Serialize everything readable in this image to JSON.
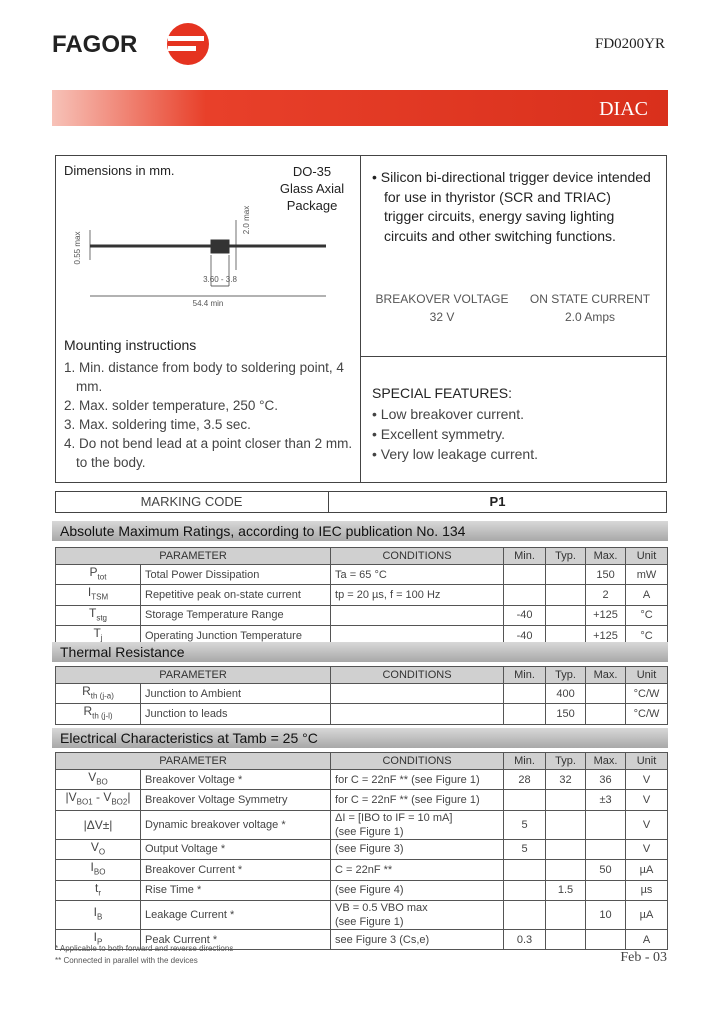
{
  "header": {
    "brand": "FAGOR",
    "part_number": "FD0200YR",
    "device_type": "DIAC"
  },
  "package": {
    "dimensions_label": "Dimensions in mm.",
    "package_lines": [
      "DO-35",
      "Glass Axial",
      "Package"
    ],
    "dimension_labels": [
      "0.55 max",
      "2.0 max",
      "3.60 - 3.8",
      "54.4 min"
    ]
  },
  "mounting": {
    "title": "Mounting instructions",
    "items": [
      "1. Min. distance from body to soldering point, 4 mm.",
      "2. Max. solder temperature, 250 °C.",
      "3. Max. soldering time, 3.5 sec.",
      "4. Do not bend lead at a point closer than 2 mm. to the body."
    ]
  },
  "description": "• Silicon bi-directional trigger device intended for use in thyristor (SCR and TRIAC) trigger circuits, energy saving lighting circuits and other switching functions.",
  "key_parameters": [
    {
      "label": "BREAKOVER VOLTAGE",
      "value": "32 V"
    },
    {
      "label": "ON STATE CURRENT",
      "value": "2.0 Amps"
    }
  ],
  "special_features": {
    "title": "SPECIAL FEATURES:",
    "items": [
      "• Low breakover current.",
      "• Excellent symmetry.",
      "• Very low leakage current."
    ]
  },
  "marking": {
    "label": "MARKING CODE",
    "code": "P1"
  },
  "tables": [
    {
      "title": "Absolute Maximum Ratings, according to IEC publication No. 134",
      "header": [
        "PARAMETER",
        "CONDITIONS",
        "Min.",
        "Typ.",
        "Max.",
        "Unit"
      ],
      "rows": [
        {
          "symbol": [
            "P",
            "tot"
          ],
          "parameter": "Total Power Dissipation",
          "conditions": [
            "Ta = 65 °C"
          ],
          "min": null,
          "typ": null,
          "max": "150",
          "unit": "mW"
        },
        {
          "symbol": [
            "I",
            "TSM"
          ],
          "parameter": "Repetitive peak on-state current",
          "conditions": [
            "tp = 20 µs, f = 100 Hz"
          ],
          "min": null,
          "typ": null,
          "max": "2",
          "unit": "A"
        },
        {
          "symbol": [
            "T",
            "stg"
          ],
          "parameter": "Storage Temperature Range",
          "conditions": null,
          "min": "-40",
          "typ": null,
          "max": "+125",
          "unit": "°C"
        },
        {
          "symbol": [
            "T",
            "j"
          ],
          "parameter": "Operating Junction Temperature",
          "conditions": null,
          "min": "-40",
          "typ": null,
          "max": "+125",
          "unit": "°C"
        }
      ]
    },
    {
      "title": "Thermal Resistance",
      "header": [
        "PARAMETER",
        "CONDITIONS",
        "Min.",
        "Typ.",
        "Max.",
        "Unit"
      ],
      "rows": [
        {
          "symbol": [
            "R",
            "th (j-a)"
          ],
          "parameter": "Junction to Ambient",
          "conditions": null,
          "min": null,
          "typ": "400",
          "max": null,
          "unit": "°C/W"
        },
        {
          "symbol": [
            "R",
            "th (j-l)"
          ],
          "parameter": "Junction to leads",
          "conditions": null,
          "min": null,
          "typ": "150",
          "max": null,
          "unit": "°C/W"
        }
      ]
    },
    {
      "title": "Electrical Characteristics at Tamb = 25 °C",
      "header": [
        "PARAMETER",
        "CONDITIONS",
        "Min.",
        "Typ.",
        "Max.",
        "Unit"
      ],
      "rows": [
        {
          "symbol": [
            "V",
            "BO"
          ],
          "parameter": "Breakover Voltage *",
          "conditions": [
            "for C = 22nF ** (see Figure 1)"
          ],
          "min": "28",
          "typ": "32",
          "max": "36",
          "unit": "V"
        },
        {
          "symbol": [
            "|V",
            "BO1",
            " - V",
            "BO2",
            "|"
          ],
          "parameter": "Breakover Voltage Symmetry",
          "conditions": [
            "for C = 22nF ** (see Figure 1)"
          ],
          "min": null,
          "typ": null,
          "max": "±3",
          "unit": "V"
        },
        {
          "symbol": [
            "|ΔV±|"
          ],
          "parameter": "Dynamic breakover voltage *",
          "conditions": [
            "ΔI = [IBO to IF = 10 mA]",
            "(see Figure 1)"
          ],
          "min": "5",
          "typ": null,
          "max": null,
          "unit": "V"
        },
        {
          "symbol": [
            "V",
            "O"
          ],
          "parameter": "Output Voltage *",
          "conditions": [
            "(see Figure 3)"
          ],
          "min": "5",
          "typ": null,
          "max": null,
          "unit": "V"
        },
        {
          "symbol": [
            "I",
            "BO"
          ],
          "parameter": "Breakover Current *",
          "conditions": [
            "C = 22nF **"
          ],
          "min": null,
          "typ": null,
          "max": "50",
          "unit": "µA"
        },
        {
          "symbol": [
            "t",
            "r"
          ],
          "parameter": "Rise Time *",
          "conditions": [
            "(see Figure 4)"
          ],
          "min": null,
          "typ": "1.5",
          "max": null,
          "unit": "µs"
        },
        {
          "symbol": [
            "I",
            "B"
          ],
          "parameter": "Leakage Current *",
          "conditions": [
            "VB = 0.5 VBO max",
            "(see Figure 1)"
          ],
          "min": null,
          "typ": null,
          "max": "10",
          "unit": "µA"
        },
        {
          "symbol": [
            "I",
            "P"
          ],
          "parameter": "Peak Current *",
          "conditions": [
            "see Figure 3 (Cs,e)"
          ],
          "min": "0.3",
          "typ": null,
          "max": null,
          "unit": "A"
        }
      ]
    }
  ],
  "footnotes": [
    "* Applicable to both forward and reverse directions",
    "** Connected in parallel with the devices"
  ],
  "date": "Feb - 03"
}
